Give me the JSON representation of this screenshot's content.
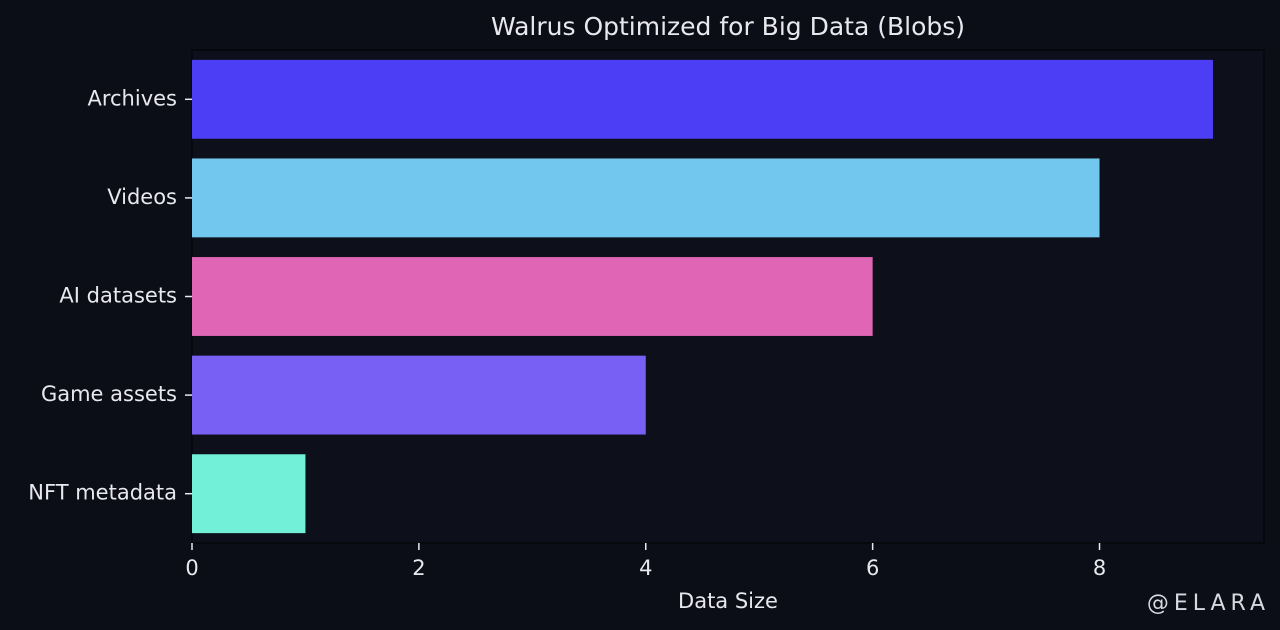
{
  "chart_data": {
    "type": "barh",
    "title": "Walrus Optimized for Big Data (Blobs)",
    "categories": [
      "Archives",
      "Videos",
      "AI datasets",
      "Game assets",
      "NFT metadata"
    ],
    "values": [
      9,
      8,
      6,
      4,
      1
    ],
    "colors": [
      "#4b3ef5",
      "#72c7ef",
      "#e066b5",
      "#7860f5",
      "#72f0d8"
    ],
    "xlabel": "Data Size",
    "xlim": [
      0,
      9.45
    ],
    "xticks": [
      0,
      2,
      4,
      6,
      8
    ],
    "watermark": "@ELARA"
  }
}
